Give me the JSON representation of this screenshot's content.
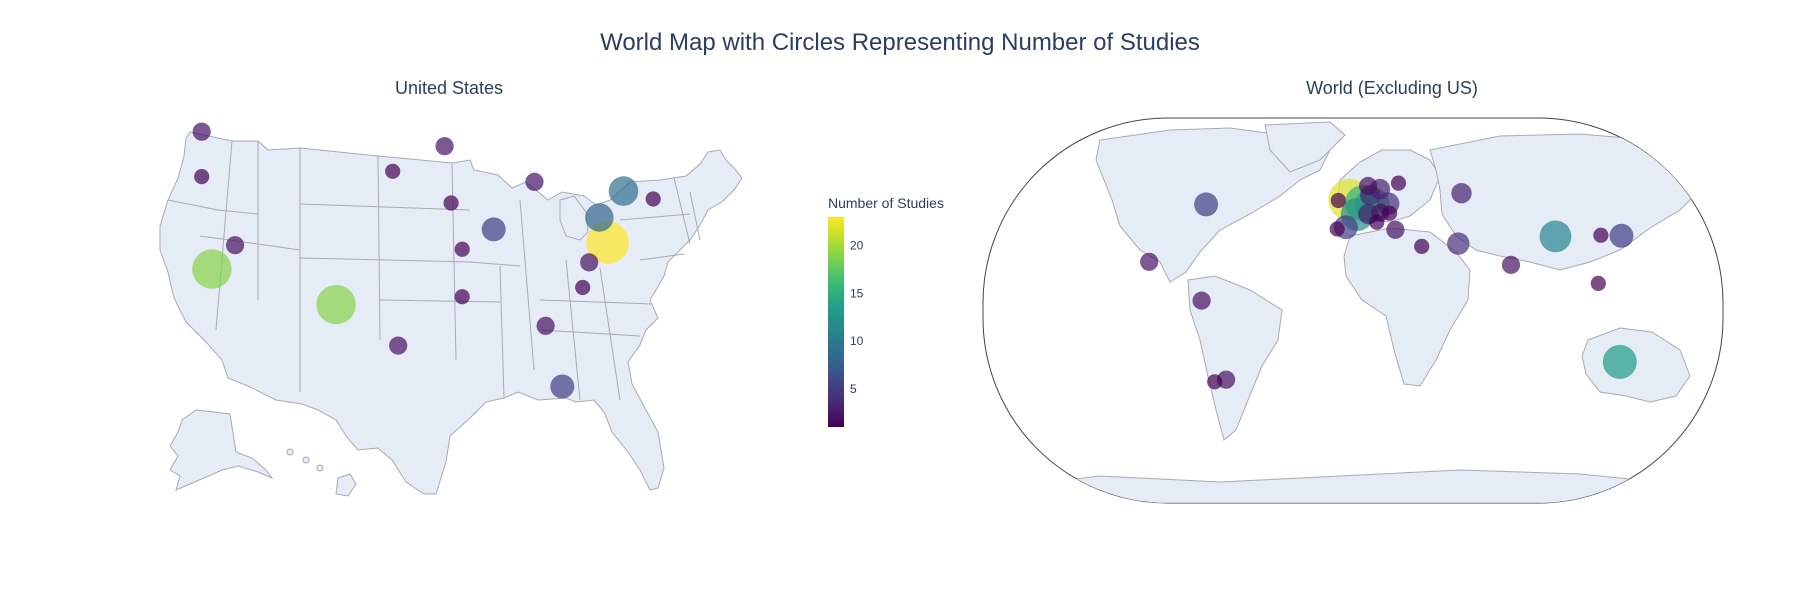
{
  "title": "World Map with Circles Representing Number of Studies",
  "colors": {
    "land": "#e5ecf6",
    "border": "#a9a9b3",
    "text": "#2a3f5f"
  },
  "chart_data": {
    "type": "scatter-geo",
    "colorbar": {
      "title": "Number of Studies",
      "range": [
        1,
        23
      ],
      "ticks": [
        5,
        10,
        15,
        20
      ],
      "colorscale": [
        "#440154",
        "#482878",
        "#3e4989",
        "#31688e",
        "#26828e",
        "#1f9e89",
        "#35b779",
        "#6ece58",
        "#b5de2b",
        "#fde725"
      ]
    },
    "subplots": [
      {
        "name": "United States",
        "points": [
          {
            "loc": "Washington",
            "lon": -120.5,
            "lat": 47.4,
            "value": 2
          },
          {
            "loc": "Oregon",
            "lon": -120.5,
            "lat": 44.0,
            "value": 1
          },
          {
            "loc": "California",
            "lon": -119.4,
            "lat": 37.0,
            "value": 19
          },
          {
            "loc": "Nevada",
            "lon": -116.9,
            "lat": 38.8,
            "value": 2
          },
          {
            "loc": "New Mexico",
            "lon": -106.0,
            "lat": 34.3,
            "value": 19
          },
          {
            "loc": "Texas",
            "lon": -99.3,
            "lat": 31.2,
            "value": 2
          },
          {
            "loc": "South Dakota",
            "lon": -99.9,
            "lat": 44.4,
            "value": 1
          },
          {
            "loc": "Minnesota",
            "lon": -94.3,
            "lat": 46.3,
            "value": 2
          },
          {
            "loc": "Iowa",
            "lon": -93.6,
            "lat": 42.0,
            "value": 1
          },
          {
            "loc": "Missouri",
            "lon": -92.4,
            "lat": 38.5,
            "value": 1
          },
          {
            "loc": "Arkansas",
            "lon": -92.4,
            "lat": 34.9,
            "value": 1
          },
          {
            "loc": "Illinois",
            "lon": -89.0,
            "lat": 40.0,
            "value": 5
          },
          {
            "loc": "Michigan",
            "lon": -84.6,
            "lat": 43.6,
            "value": 2
          },
          {
            "loc": "Georgia",
            "lon": -83.4,
            "lat": 32.7,
            "value": 2
          },
          {
            "loc": "Florida",
            "lon": -81.6,
            "lat": 28.1,
            "value": 5
          },
          {
            "loc": "North Carolina",
            "lon": -79.4,
            "lat": 35.6,
            "value": 1
          },
          {
            "loc": "Virginia",
            "lon": -78.7,
            "lat": 37.5,
            "value": 2
          },
          {
            "loc": "Pennsylvania",
            "lon": -77.6,
            "lat": 40.9,
            "value": 8
          },
          {
            "loc": "New York",
            "lon": -75.0,
            "lat": 42.9,
            "value": 9
          },
          {
            "loc": "Maryland",
            "lon": -76.7,
            "lat": 39.0,
            "value": 23
          },
          {
            "loc": "Massachusetts",
            "lon": -71.8,
            "lat": 42.3,
            "value": 1
          }
        ]
      },
      {
        "name": "World (Excluding US)",
        "points": [
          {
            "loc": "Canada",
            "lon": -79.5,
            "lat": 51.5,
            "value": 5
          },
          {
            "loc": "Mexico",
            "lon": -102.0,
            "lat": 23.5,
            "value": 2
          },
          {
            "loc": "Colombia",
            "lon": -74.3,
            "lat": 4.6,
            "value": 2
          },
          {
            "loc": "Chile",
            "lon": -71.0,
            "lat": -35.0,
            "value": 1
          },
          {
            "loc": "Argentina",
            "lon": -65.0,
            "lat": -34.0,
            "value": 2
          },
          {
            "loc": "United Kingdom",
            "lon": -2.0,
            "lat": 53.8,
            "value": 22
          },
          {
            "loc": "Ireland",
            "lon": -8.0,
            "lat": 53.4,
            "value": 1
          },
          {
            "loc": "Spain",
            "lon": -3.7,
            "lat": 40.4,
            "value": 5
          },
          {
            "loc": "Portugal",
            "lon": -8.2,
            "lat": 39.5,
            "value": 1
          },
          {
            "loc": "France",
            "lon": 2.3,
            "lat": 46.6,
            "value": 12
          },
          {
            "loc": "Netherlands",
            "lon": 5.3,
            "lat": 52.1,
            "value": 15
          },
          {
            "loc": "Germany",
            "lon": 10.4,
            "lat": 51.2,
            "value": 14
          },
          {
            "loc": "Italy",
            "lon": 12.5,
            "lat": 42.8,
            "value": 1
          },
          {
            "loc": "Switzerland",
            "lon": 8.2,
            "lat": 46.8,
            "value": 3
          },
          {
            "loc": "Denmark",
            "lon": 9.5,
            "lat": 56.0,
            "value": 3
          },
          {
            "loc": "Sweden",
            "lon": 15.0,
            "lat": 59.0,
            "value": 3
          },
          {
            "loc": "Norway",
            "lon": 8.5,
            "lat": 60.5,
            "value": 2
          },
          {
            "loc": "Finland",
            "lon": 25.7,
            "lat": 61.9,
            "value": 1
          },
          {
            "loc": "Poland",
            "lon": 19.1,
            "lat": 51.9,
            "value": 4
          },
          {
            "loc": "Austria",
            "lon": 14.5,
            "lat": 47.5,
            "value": 2
          },
          {
            "loc": "Hungary",
            "lon": 19.5,
            "lat": 47.2,
            "value": 1
          },
          {
            "loc": "Greece",
            "lon": 22.0,
            "lat": 39.1,
            "value": 2
          },
          {
            "loc": "Israel",
            "lon": 34.9,
            "lat": 31.0,
            "value": 1
          },
          {
            "loc": "Russia",
            "lon": 60.0,
            "lat": 57.0,
            "value": 3
          },
          {
            "loc": "Iran",
            "lon": 53.7,
            "lat": 32.4,
            "value": 4
          },
          {
            "loc": "India",
            "lon": 78.9,
            "lat": 22.0,
            "value": 2
          },
          {
            "loc": "China",
            "lon": 104.2,
            "lat": 35.9,
            "value": 11
          },
          {
            "loc": "South Korea",
            "lon": 127.8,
            "lat": 36.5,
            "value": 1
          },
          {
            "loc": "Japan",
            "lon": 138.3,
            "lat": 36.2,
            "value": 5
          },
          {
            "loc": "Philippines",
            "lon": 121.0,
            "lat": 13.0,
            "value": 1
          },
          {
            "loc": "Australia",
            "lon": 134.0,
            "lat": -25.3,
            "value": 13
          }
        ]
      }
    ]
  }
}
